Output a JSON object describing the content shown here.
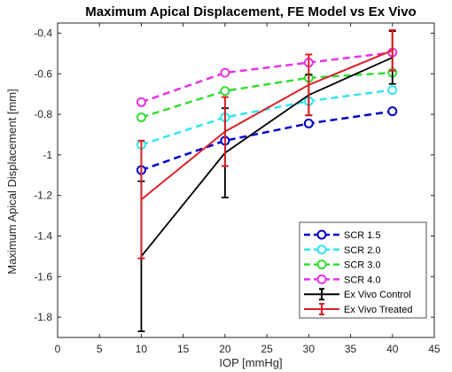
{
  "chart_data": {
    "type": "line",
    "title": "Maximum Apical Displacement, FE Model vs Ex Vivo",
    "xlabel": "IOP [mmHg]",
    "ylabel": "Maximum Apical Displacement [mm]",
    "xlim": [
      0,
      45
    ],
    "ylim": [
      -1.9,
      -0.35
    ],
    "xticks": [
      0,
      5,
      10,
      15,
      20,
      25,
      30,
      35,
      40,
      45
    ],
    "yticks": [
      -1.8,
      -1.6,
      -1.4,
      -1.2,
      -1,
      -0.8,
      -0.6,
      -0.4
    ],
    "xtick_labels": [
      "0",
      "5",
      "10",
      "15",
      "20",
      "25",
      "30",
      "35",
      "40",
      "45"
    ],
    "ytick_labels": [
      "-1.8",
      "-1.6",
      "-1.4",
      "-1.2",
      "-1",
      "-0.8",
      "-0.6",
      "-0.4"
    ],
    "grid": false,
    "legend_position": "bottom-right",
    "x": [
      10,
      20,
      30,
      40
    ],
    "series": [
      {
        "name": "SCR 1.5",
        "style": "dashed-circle",
        "color": "#0000cc",
        "values": [
          -1.075,
          -0.93,
          -0.845,
          -0.785
        ]
      },
      {
        "name": "SCR 2.0",
        "style": "dashed-circle",
        "color": "#33e6f0",
        "values": [
          -0.95,
          -0.815,
          -0.735,
          -0.68
        ]
      },
      {
        "name": "SCR 3.0",
        "style": "dashed-circle",
        "color": "#33dd33",
        "values": [
          -0.815,
          -0.685,
          -0.62,
          -0.595
        ]
      },
      {
        "name": "SCR 4.0",
        "style": "dashed-circle",
        "color": "#e633e6",
        "values": [
          -0.74,
          -0.595,
          -0.545,
          -0.495
        ]
      },
      {
        "name": "Ex Vivo Control",
        "style": "solid-errorbar",
        "color": "#000000",
        "values": [
          -1.5,
          -0.99,
          -0.705,
          -0.52
        ],
        "error": [
          0.37,
          0.22,
          0.1,
          0.13
        ]
      },
      {
        "name": "Ex Vivo Treated",
        "style": "solid-errorbar",
        "color": "#d91f26",
        "values": [
          -1.22,
          -0.885,
          -0.655,
          -0.485
        ],
        "error": [
          0.29,
          0.17,
          0.15,
          0.1
        ]
      }
    ]
  }
}
